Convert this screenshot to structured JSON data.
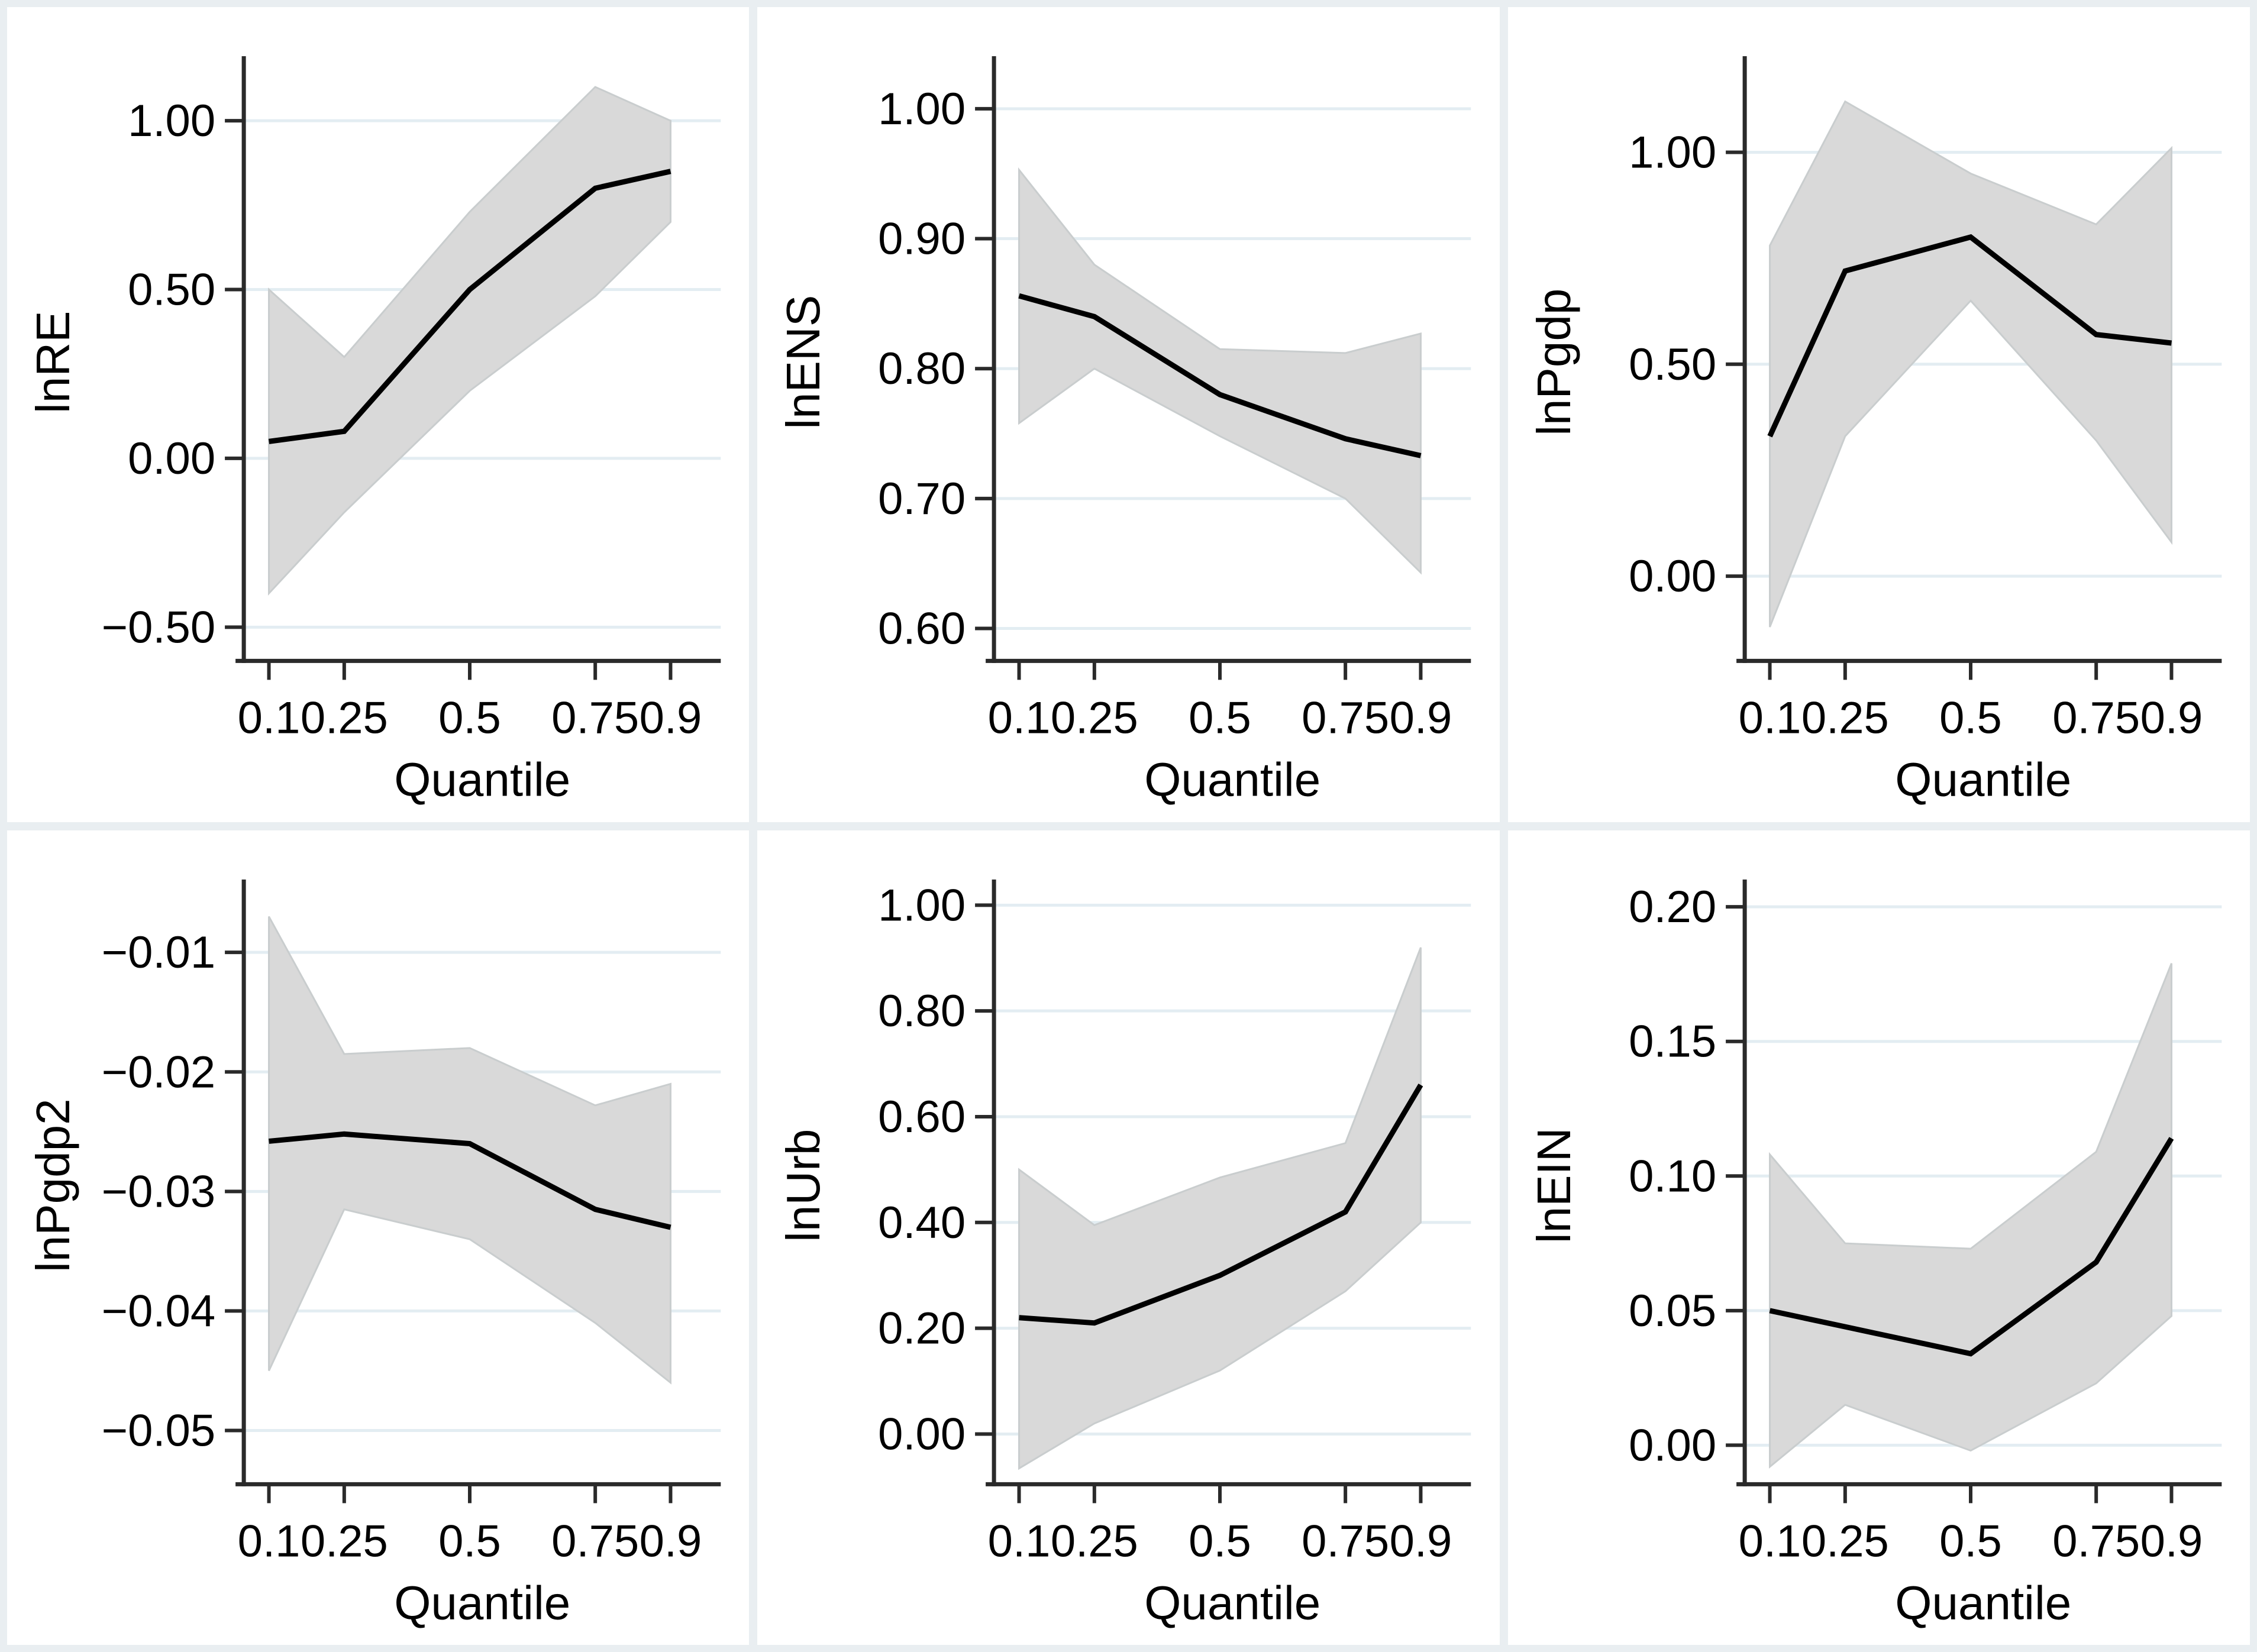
{
  "figure": {
    "title": "",
    "layout": "2x3 grid of quantile regression coefficient plots with 95% confidence bands",
    "x_axis_label": "Quantile",
    "x_tick_labels": [
      "0.1",
      "0.25",
      "0.5",
      "0.75",
      "0.9"
    ]
  },
  "style": {
    "page_background": "#e9eef1",
    "panel_background": "#ffffff",
    "gridline_color": "#e3edf2",
    "band_fill": "#d9d9d9",
    "band_edge": "#c9cdce",
    "line_color": "#000000",
    "axis_color": "#2a2a2a",
    "text_color": "#000000"
  },
  "chart_data": [
    {
      "type": "line",
      "panel": "lnRE",
      "ylabel": "lnRE",
      "xlabel": "Quantile",
      "x": [
        0.1,
        0.25,
        0.5,
        0.75,
        0.9
      ],
      "x_tick_labels": [
        "0.1",
        "0.25",
        "0.5",
        "0.75",
        "0.9"
      ],
      "xlim": [
        0.05,
        1.0
      ],
      "ylim": [
        -0.6,
        1.17
      ],
      "yticks": [
        1.0,
        0.5,
        0.0,
        -0.5
      ],
      "ytick_labels": [
        "1.00",
        "0.50",
        "0.00",
        "−0.50"
      ],
      "grid": true,
      "legend": "none",
      "series": [
        {
          "name": "coefficient",
          "values": [
            0.05,
            0.08,
            0.5,
            0.8,
            0.85
          ]
        },
        {
          "name": "ci_upper",
          "values": [
            0.5,
            0.3,
            0.73,
            1.1,
            1.0
          ]
        },
        {
          "name": "ci_lower",
          "values": [
            -0.4,
            -0.16,
            0.2,
            0.48,
            0.7
          ]
        }
      ]
    },
    {
      "type": "line",
      "panel": "lnENS",
      "ylabel": "lnENS",
      "xlabel": "Quantile",
      "x": [
        0.1,
        0.25,
        0.5,
        0.75,
        0.9
      ],
      "x_tick_labels": [
        "0.1",
        "0.25",
        "0.5",
        "0.75",
        "0.9"
      ],
      "xlim": [
        0.05,
        1.0
      ],
      "ylim": [
        0.575,
        1.035
      ],
      "yticks": [
        1.0,
        0.9,
        0.8,
        0.7,
        0.6
      ],
      "ytick_labels": [
        "1.00",
        "0.90",
        "0.80",
        "0.70",
        "0.60"
      ],
      "grid": true,
      "legend": "none",
      "series": [
        {
          "name": "coefficient",
          "values": [
            0.856,
            0.84,
            0.78,
            0.746,
            0.733
          ]
        },
        {
          "name": "ci_upper",
          "values": [
            0.953,
            0.88,
            0.815,
            0.812,
            0.827
          ]
        },
        {
          "name": "ci_lower",
          "values": [
            0.758,
            0.8,
            0.748,
            0.7,
            0.643
          ]
        }
      ]
    },
    {
      "type": "line",
      "panel": "lnPgdp",
      "ylabel": "lnPgdp",
      "xlabel": "Quantile",
      "x": [
        0.1,
        0.25,
        0.5,
        0.75,
        0.9
      ],
      "x_tick_labels": [
        "0.1",
        "0.25",
        "0.5",
        "0.75",
        "0.9"
      ],
      "xlim": [
        0.05,
        1.0
      ],
      "ylim": [
        -0.2,
        1.21
      ],
      "yticks": [
        1.0,
        0.5,
        0.0
      ],
      "ytick_labels": [
        "1.00",
        "0.50",
        "0.00"
      ],
      "grid": true,
      "legend": "none",
      "series": [
        {
          "name": "coefficient",
          "values": [
            0.33,
            0.72,
            0.8,
            0.57,
            0.55
          ]
        },
        {
          "name": "ci_upper",
          "values": [
            0.78,
            1.12,
            0.95,
            0.83,
            1.01
          ]
        },
        {
          "name": "ci_lower",
          "values": [
            -0.12,
            0.33,
            0.65,
            0.32,
            0.08
          ]
        }
      ]
    },
    {
      "type": "line",
      "panel": "lnPgdp2",
      "ylabel": "lnPgdp2",
      "xlabel": "Quantile",
      "x": [
        0.1,
        0.25,
        0.5,
        0.75,
        0.9
      ],
      "x_tick_labels": [
        "0.1",
        "0.25",
        "0.5",
        "0.75",
        "0.9"
      ],
      "xlim": [
        0.05,
        1.0
      ],
      "ylim": [
        -0.0545,
        -0.0045
      ],
      "yticks": [
        -0.01,
        -0.02,
        -0.03,
        -0.04,
        -0.05
      ],
      "ytick_labels": [
        "−0.01",
        "−0.02",
        "−0.03",
        "−0.04",
        "−0.05"
      ],
      "grid": true,
      "legend": "none",
      "series": [
        {
          "name": "coefficient",
          "values": [
            -0.0258,
            -0.0252,
            -0.026,
            -0.0315,
            -0.033
          ]
        },
        {
          "name": "ci_upper",
          "values": [
            -0.007,
            -0.0185,
            -0.018,
            -0.0228,
            -0.021
          ]
        },
        {
          "name": "ci_lower",
          "values": [
            -0.045,
            -0.0315,
            -0.034,
            -0.041,
            -0.046
          ]
        }
      ]
    },
    {
      "type": "line",
      "panel": "lnUrb",
      "ylabel": "lnUrb",
      "xlabel": "Quantile",
      "x": [
        0.1,
        0.25,
        0.5,
        0.75,
        0.9
      ],
      "x_tick_labels": [
        "0.1",
        "0.25",
        "0.5",
        "0.75",
        "0.9"
      ],
      "xlim": [
        0.05,
        1.0
      ],
      "ylim": [
        -0.095,
        1.035
      ],
      "yticks": [
        1.0,
        0.8,
        0.6,
        0.4,
        0.2,
        0.0
      ],
      "ytick_labels": [
        "1.00",
        "0.80",
        "0.60",
        "0.40",
        "0.20",
        "0.00"
      ],
      "grid": true,
      "legend": "none",
      "series": [
        {
          "name": "coefficient",
          "values": [
            0.22,
            0.21,
            0.3,
            0.42,
            0.66
          ]
        },
        {
          "name": "ci_upper",
          "values": [
            0.5,
            0.395,
            0.485,
            0.55,
            0.92
          ]
        },
        {
          "name": "ci_lower",
          "values": [
            -0.065,
            0.02,
            0.12,
            0.27,
            0.4
          ]
        }
      ]
    },
    {
      "type": "line",
      "panel": "lnEIN",
      "ylabel": "lnEIN",
      "xlabel": "Quantile",
      "x": [
        0.1,
        0.25,
        0.5,
        0.75,
        0.9
      ],
      "x_tick_labels": [
        "0.1",
        "0.25",
        "0.5",
        "0.75",
        "0.9"
      ],
      "xlim": [
        0.05,
        1.0
      ],
      "ylim": [
        -0.0145,
        0.2075
      ],
      "yticks": [
        0.2,
        0.15,
        0.1,
        0.05,
        0.0
      ],
      "ytick_labels": [
        "0.20",
        "0.15",
        "0.10",
        "0.05",
        "0.00"
      ],
      "grid": true,
      "legend": "none",
      "series": [
        {
          "name": "coefficient",
          "values": [
            0.05,
            0.044,
            0.034,
            0.068,
            0.114
          ]
        },
        {
          "name": "ci_upper",
          "values": [
            0.108,
            0.075,
            0.073,
            0.109,
            0.179
          ]
        },
        {
          "name": "ci_lower",
          "values": [
            -0.008,
            0.015,
            -0.002,
            0.023,
            0.048
          ]
        }
      ]
    }
  ]
}
